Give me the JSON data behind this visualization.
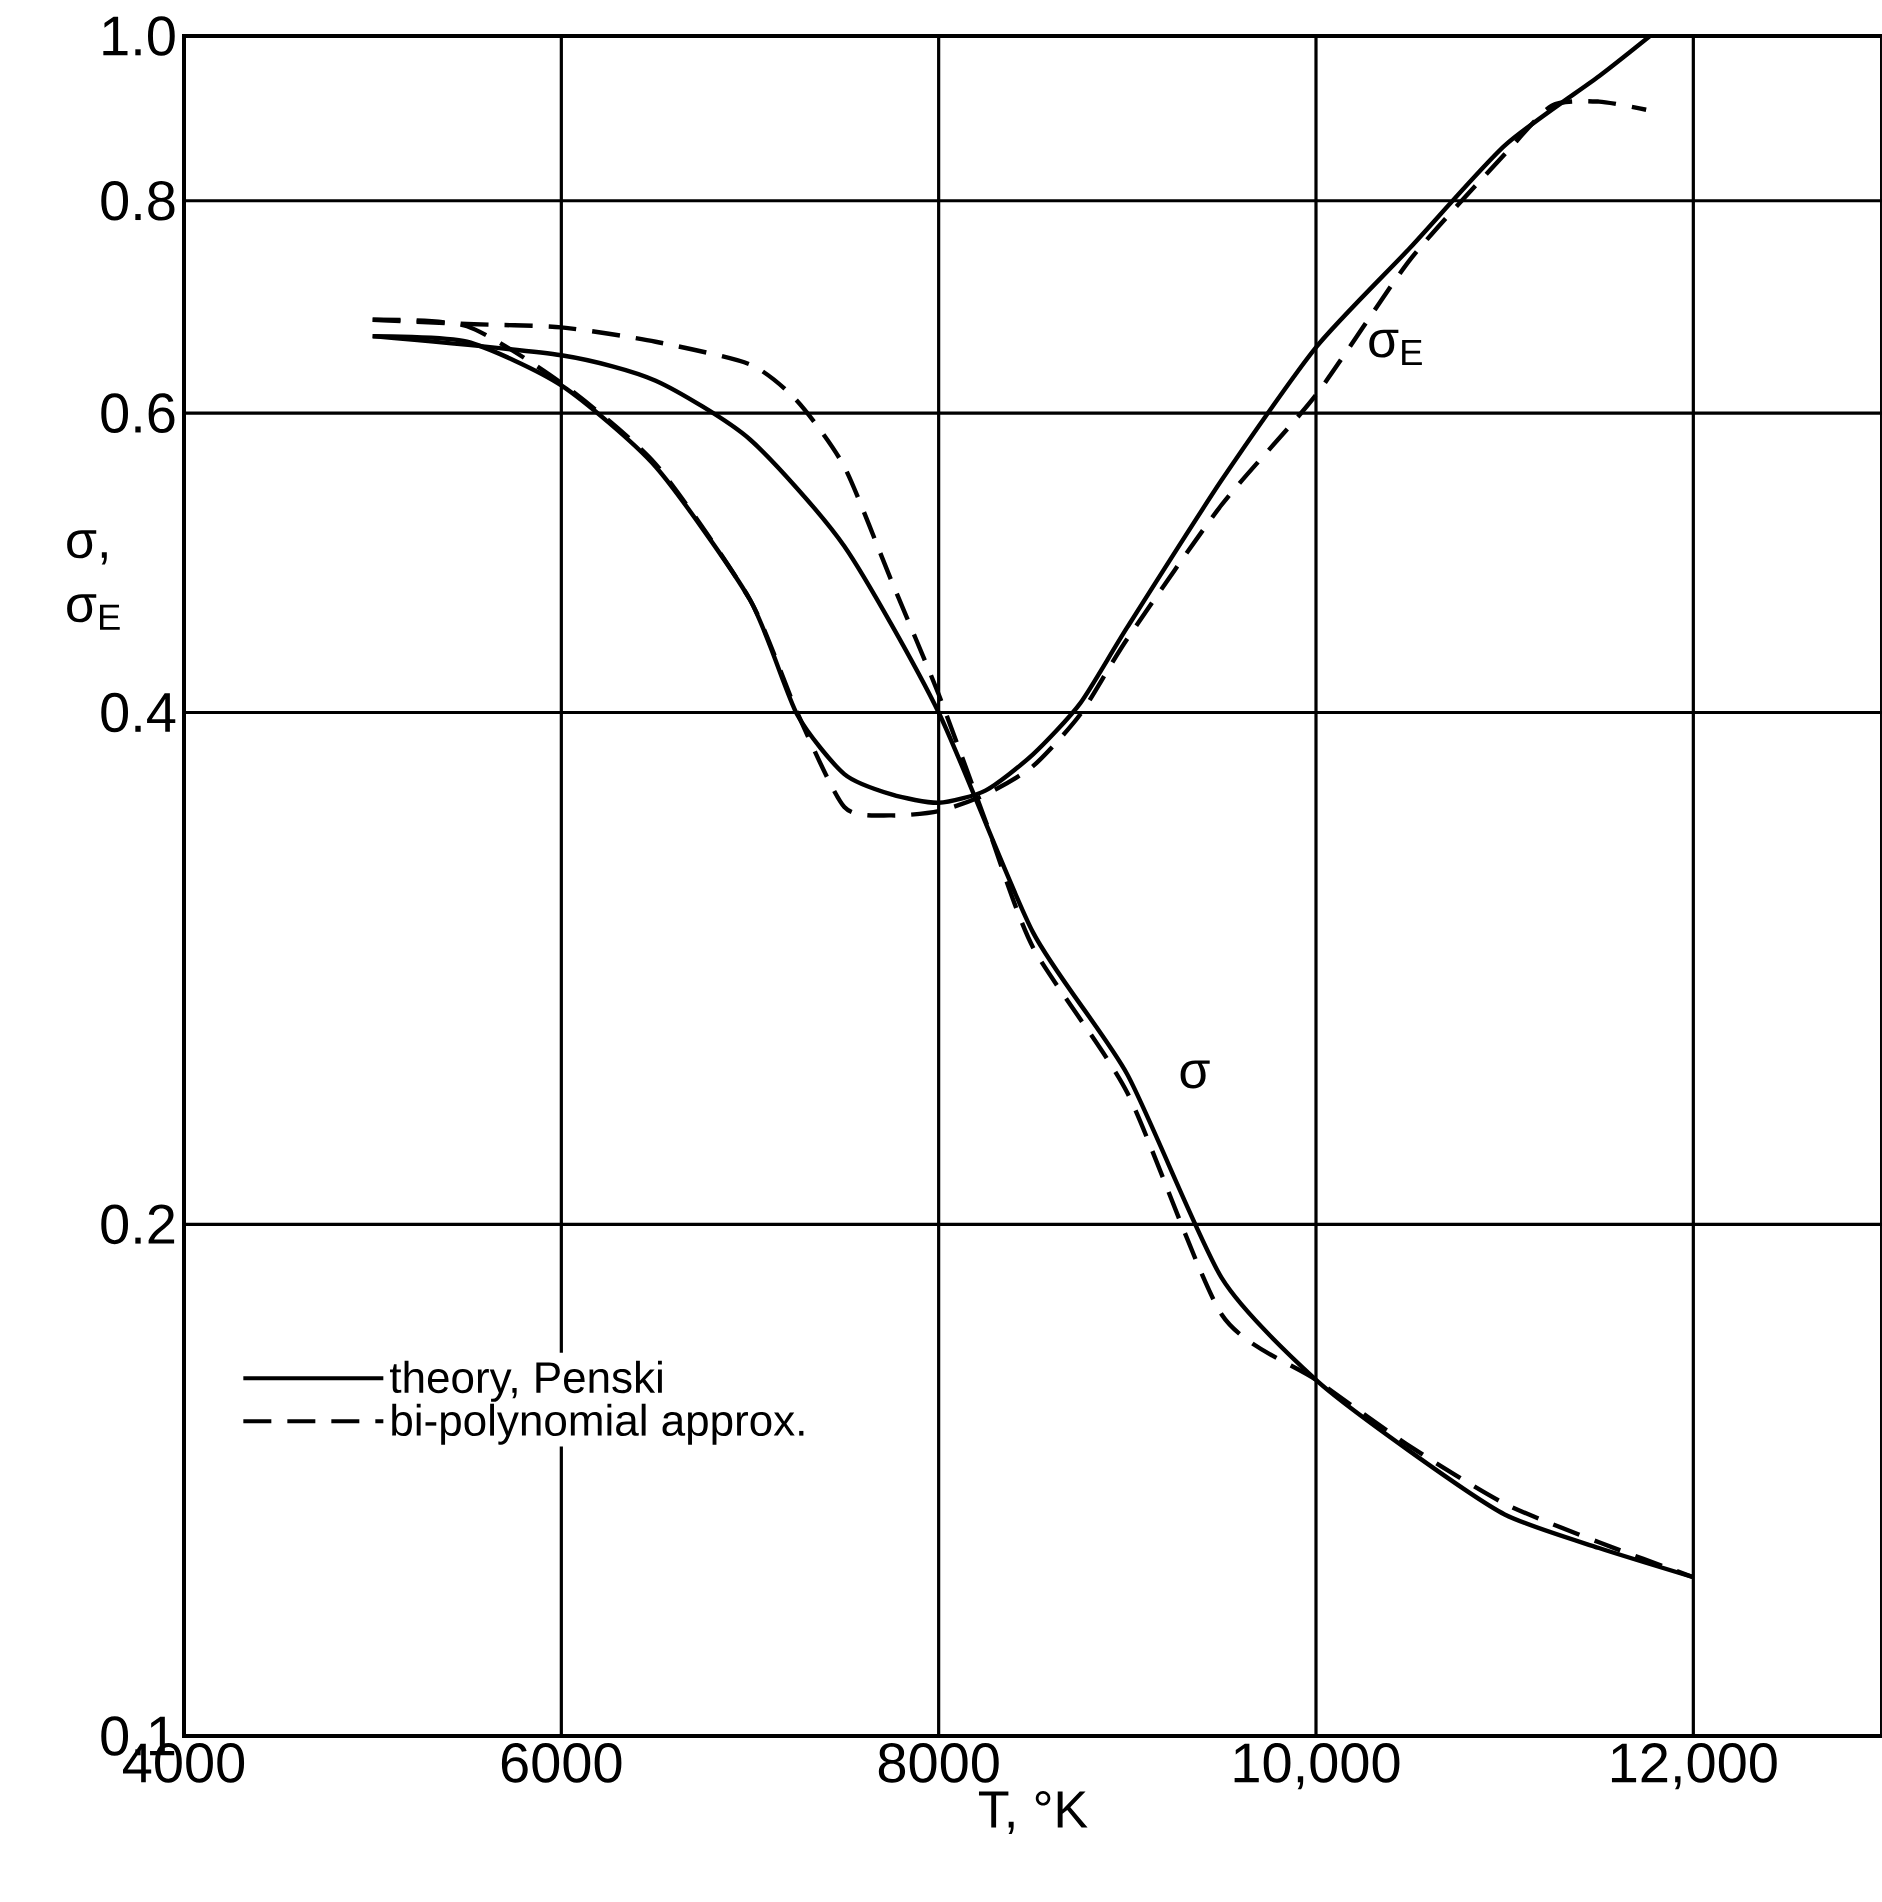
{
  "chart_data": {
    "type": "line",
    "xlabel": "T, °K",
    "ylabel": "σ, σ$_{E}$",
    "log": "y",
    "grid": true,
    "legend": "bottom left",
    "marker": "none",
    "xlim": [
      4000,
      13000
    ],
    "ylim": [
      0.1,
      1.0
    ],
    "xticks": [
      4000,
      6000,
      8000,
      {
        "value": 10000,
        "label": "10,000"
      },
      {
        "value": 12000,
        "label": "12,000"
      }
    ],
    "yticks": [
      0.1,
      0.2,
      0.4,
      0.6,
      0.8,
      {
        "value": 1.0,
        "label": "1.0"
      }
    ],
    "series": [
      {
        "name": "theory, Penski",
        "color": "#000000",
        "line_style": "solid",
        "x": [
          5000,
          6000,
          6500,
          7000,
          7500,
          8000,
          8500,
          9000,
          9500,
          10000,
          10500,
          11000,
          11500,
          12000
        ],
        "values": [
          0.666,
          0.649,
          0.627,
          0.579,
          0.501,
          0.4,
          0.297,
          0.245,
          0.186,
          0.162,
          0.147,
          0.135,
          0.129,
          0.124
        ]
      },
      {
        "name": "bi-polynomial approx.",
        "color": "#000000",
        "line_style": "dashed",
        "x": [
          5000,
          5500,
          6000,
          6500,
          7000,
          7250,
          7500,
          7750,
          8000,
          8250,
          8500,
          9000,
          9500,
          10000,
          10500,
          11000,
          11500,
          12000
        ],
        "values": [
          0.681,
          0.677,
          0.674,
          0.661,
          0.641,
          0.61,
          0.558,
          0.478,
          0.41,
          0.345,
          0.291,
          0.239,
          0.177,
          0.162,
          0.148,
          0.137,
          0.13,
          0.124
        ]
      },
      {
        "color": "#000000",
        "line_style": "solid",
        "x": [
          5000,
          5500,
          6000,
          6500,
          7000,
          7250,
          7500,
          7750,
          8000,
          8250,
          8500,
          8750,
          9000,
          9500,
          10000,
          10500,
          11000,
          11500,
          11770
        ],
        "values": [
          0.666,
          0.661,
          0.623,
          0.558,
          0.466,
          0.399,
          0.368,
          0.358,
          0.354,
          0.36,
          0.378,
          0.405,
          0.449,
          0.548,
          0.656,
          0.751,
          0.862,
          0.947,
          1.0
        ]
      },
      {
        "color": "#000000",
        "line_style": "dashed",
        "x": [
          5000,
          5500,
          6000,
          6500,
          7000,
          7250,
          7500,
          7750,
          8000,
          8250,
          8500,
          8750,
          9000,
          9500,
          10000,
          10500,
          11000,
          11250,
          11500,
          11750
        ],
        "values": [
          0.681,
          0.675,
          0.625,
          0.56,
          0.466,
          0.4,
          0.352,
          0.348,
          0.35,
          0.358,
          0.372,
          0.399,
          0.442,
          0.53,
          0.615,
          0.739,
          0.852,
          0.91,
          0.915,
          0.905
        ]
      }
    ],
    "annotations": [
      {
        "text": "σ",
        "x": 9000,
        "y": 0.245
      },
      {
        "text": "σ$_{E}$",
        "x": 10000,
        "y": 0.656
      }
    ]
  }
}
